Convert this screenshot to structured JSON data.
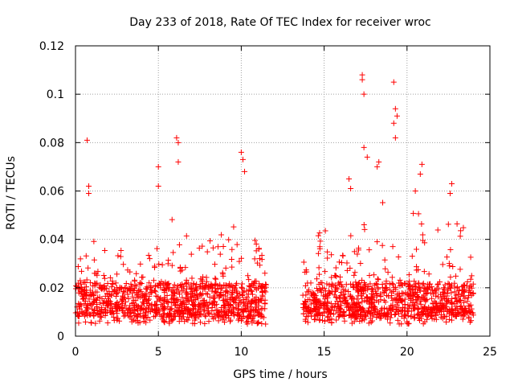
{
  "chart_data": {
    "type": "scatter",
    "title": "Day 233 of 2018, Rate Of TEC Index for receiver wroc",
    "xlabel": "GPS time / hours",
    "ylabel": "ROTI / TECUs",
    "xlim": [
      0,
      25
    ],
    "ylim": [
      0,
      0.12
    ],
    "x_ticks": [
      "0",
      "5",
      "10",
      "15",
      "20",
      "25"
    ],
    "y_ticks": [
      "0",
      "0.02",
      "0.04",
      "0.06",
      "0.08",
      "0.1",
      "0.12"
    ],
    "grid": true,
    "marker": "plus",
    "color": "#ff0000",
    "data_gaps_hours": [
      [
        11.5,
        13.7
      ]
    ],
    "outliers": [
      {
        "x": 0.7,
        "y": 0.081
      },
      {
        "x": 0.8,
        "y": 0.062
      },
      {
        "x": 0.8,
        "y": 0.059
      },
      {
        "x": 5.0,
        "y": 0.07
      },
      {
        "x": 5.0,
        "y": 0.062
      },
      {
        "x": 6.1,
        "y": 0.082
      },
      {
        "x": 6.2,
        "y": 0.08
      },
      {
        "x": 6.2,
        "y": 0.072
      },
      {
        "x": 10.0,
        "y": 0.076
      },
      {
        "x": 10.1,
        "y": 0.073
      },
      {
        "x": 10.2,
        "y": 0.068
      },
      {
        "x": 17.3,
        "y": 0.108
      },
      {
        "x": 17.3,
        "y": 0.106
      },
      {
        "x": 17.4,
        "y": 0.1
      },
      {
        "x": 17.4,
        "y": 0.078
      },
      {
        "x": 17.6,
        "y": 0.074
      },
      {
        "x": 18.3,
        "y": 0.072
      },
      {
        "x": 18.2,
        "y": 0.07
      },
      {
        "x": 19.2,
        "y": 0.105
      },
      {
        "x": 19.3,
        "y": 0.094
      },
      {
        "x": 19.4,
        "y": 0.091
      },
      {
        "x": 19.2,
        "y": 0.088
      },
      {
        "x": 19.3,
        "y": 0.082
      },
      {
        "x": 20.9,
        "y": 0.071
      },
      {
        "x": 20.8,
        "y": 0.067
      },
      {
        "x": 16.5,
        "y": 0.065
      },
      {
        "x": 16.6,
        "y": 0.061
      },
      {
        "x": 22.7,
        "y": 0.063
      },
      {
        "x": 22.6,
        "y": 0.059
      },
      {
        "x": 20.5,
        "y": 0.06
      }
    ],
    "envelope": [
      {
        "x": 0,
        "y": 0.03
      },
      {
        "x": 1,
        "y": 0.04
      },
      {
        "x": 2,
        "y": 0.034
      },
      {
        "x": 3,
        "y": 0.043
      },
      {
        "x": 4,
        "y": 0.034
      },
      {
        "x": 5,
        "y": 0.04
      },
      {
        "x": 6,
        "y": 0.05
      },
      {
        "x": 7,
        "y": 0.042
      },
      {
        "x": 8,
        "y": 0.04
      },
      {
        "x": 9,
        "y": 0.045
      },
      {
        "x": 10,
        "y": 0.05
      },
      {
        "x": 11,
        "y": 0.038
      },
      {
        "x": 11.5,
        "y": 0.03
      },
      {
        "x": 13.7,
        "y": 0.034
      },
      {
        "x": 14,
        "y": 0.038
      },
      {
        "x": 15,
        "y": 0.046
      },
      {
        "x": 16,
        "y": 0.036
      },
      {
        "x": 17,
        "y": 0.05
      },
      {
        "x": 18,
        "y": 0.052
      },
      {
        "x": 19,
        "y": 0.058
      },
      {
        "x": 20,
        "y": 0.052
      },
      {
        "x": 21,
        "y": 0.05
      },
      {
        "x": 22,
        "y": 0.045
      },
      {
        "x": 23,
        "y": 0.052
      },
      {
        "x": 24,
        "y": 0.04
      }
    ],
    "density": {
      "x_range": [
        0,
        24
      ],
      "typical_floor": 0.005,
      "typical_core": [
        0.008,
        0.022
      ],
      "points_per_hour": 95,
      "seed": 233
    }
  }
}
